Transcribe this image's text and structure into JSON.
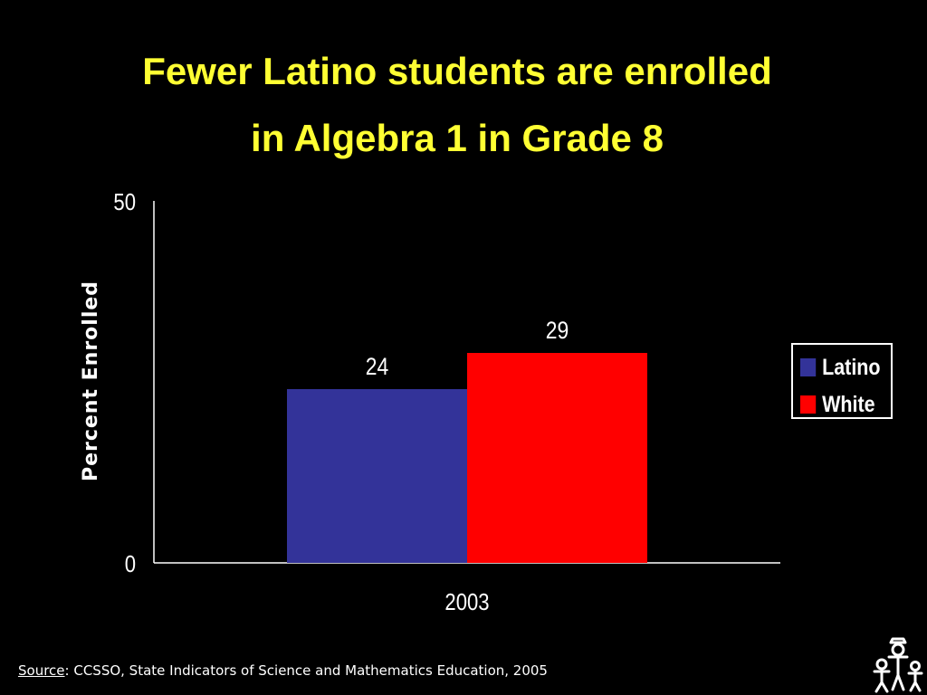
{
  "slide": {
    "title_lines": [
      "Fewer Latino students are enrolled",
      "in Algebra 1 in Grade 8"
    ],
    "source_label": "Source",
    "source_text": ": CCSSO, State Indicators of Science and Mathematics Education, 2005",
    "logo_icon": "children-figures-logo-icon",
    "colors": {
      "background": "#000000",
      "title": "#ffff33",
      "text": "#ffffff"
    }
  },
  "chart_data": {
    "type": "bar",
    "categories": [
      "2003"
    ],
    "series": [
      {
        "name": "Latino",
        "values": [
          24
        ],
        "color": "#333399"
      },
      {
        "name": "White",
        "values": [
          29
        ],
        "color": "#ff0000"
      }
    ],
    "data_labels": [
      "24",
      "29"
    ],
    "ylabel": "Percent Enrolled",
    "ylim": [
      0,
      50
    ],
    "yticks": [
      "0",
      "50"
    ],
    "grid": false,
    "legend": "right"
  }
}
